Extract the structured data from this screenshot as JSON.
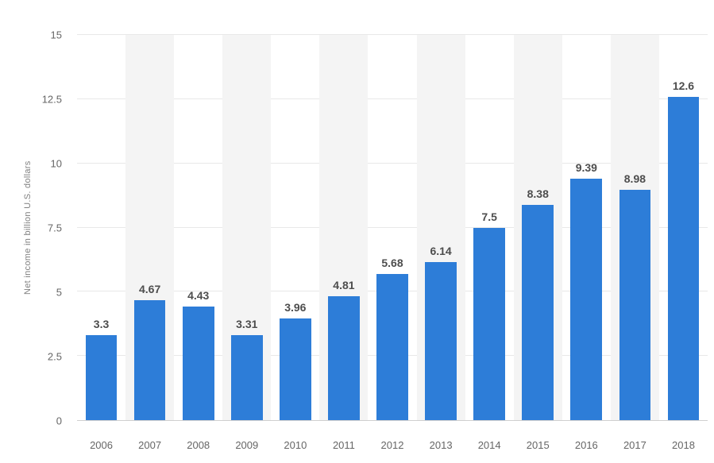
{
  "chart_data": {
    "type": "bar",
    "categories": [
      "2006",
      "2007",
      "2008",
      "2009",
      "2010",
      "2011",
      "2012",
      "2013",
      "2014",
      "2015",
      "2016",
      "2017",
      "2018"
    ],
    "values": [
      3.3,
      4.67,
      4.43,
      3.31,
      3.96,
      4.81,
      5.68,
      6.14,
      7.5,
      8.38,
      9.39,
      8.98,
      12.6
    ],
    "value_labels": [
      "3.3",
      "4.67",
      "4.43",
      "3.31",
      "3.96",
      "4.81",
      "5.68",
      "6.14",
      "7.5",
      "8.38",
      "9.39",
      "8.98",
      "12.6"
    ],
    "title": "",
    "xlabel": "",
    "ylabel": "Net income in billion U.S. dollars",
    "ylim": [
      0,
      15
    ],
    "yticks": [
      0,
      2.5,
      5,
      7.5,
      10,
      12.5,
      15
    ],
    "ytick_labels": [
      "0",
      "2.5",
      "5",
      "7.5",
      "10",
      "12.5",
      "15"
    ],
    "grid": true,
    "legend": "none",
    "colors": {
      "bar": "#2d7dd8",
      "band": "#f4f4f4",
      "gridline": "#e8e8e8",
      "axis_line": "#cfcfcf",
      "tick_text": "#666666",
      "value_text": "#4d4d4d",
      "axis_title_text": "#808080"
    },
    "band_pattern": "alternate-odd-categories-shaded"
  }
}
